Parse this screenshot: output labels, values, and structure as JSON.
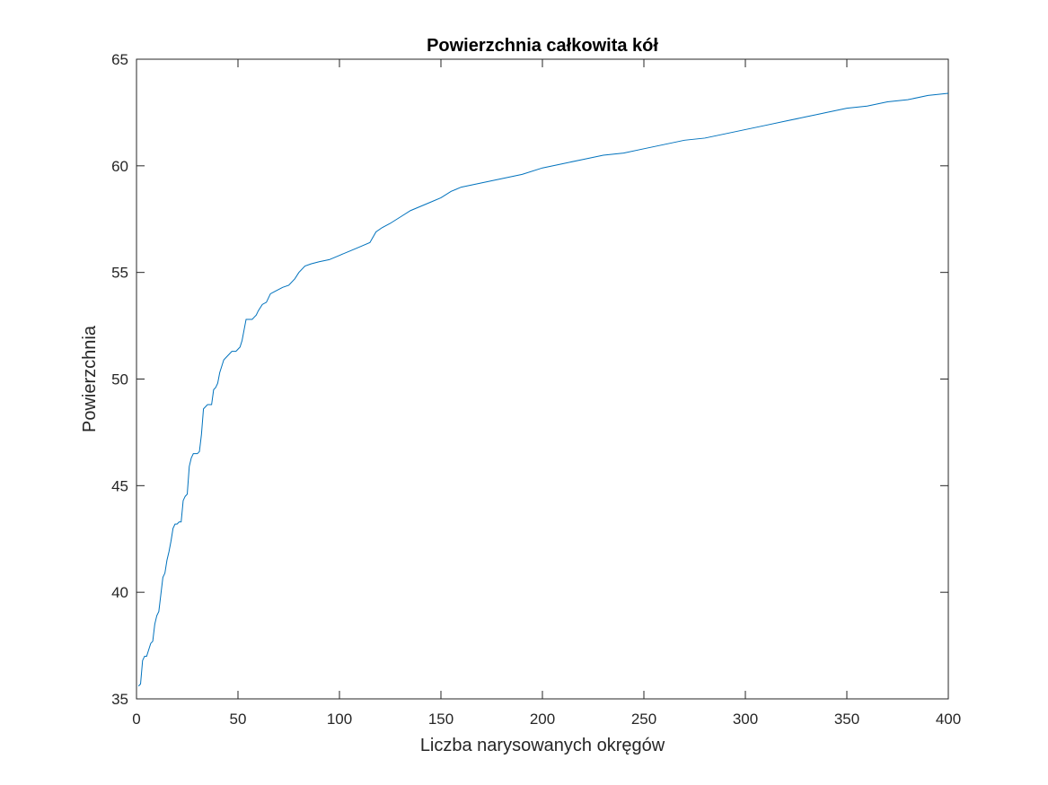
{
  "chart_data": {
    "type": "line",
    "title": "Powierzchnia całkowita kół",
    "xlabel": "Liczba narysowanych okręgów",
    "ylabel": "Powierzchnia",
    "xlim": [
      0,
      400
    ],
    "ylim": [
      35,
      65
    ],
    "xticks": [
      "0",
      "50",
      "100",
      "150",
      "200",
      "250",
      "300",
      "350",
      "400"
    ],
    "yticks": [
      "35",
      "40",
      "45",
      "50",
      "55",
      "60",
      "65"
    ],
    "grid": false,
    "series": [
      {
        "color": "#0072BD",
        "x": [
          1,
          2,
          3,
          4,
          5,
          6,
          7,
          8,
          9,
          10,
          11,
          12,
          13,
          14,
          15,
          16,
          17,
          18,
          19,
          20,
          21,
          22,
          23,
          24,
          25,
          26,
          27,
          28,
          29,
          30,
          31,
          32,
          33,
          34,
          35,
          36,
          37,
          38,
          39,
          40,
          41,
          42,
          43,
          44,
          45,
          46,
          47,
          48,
          49,
          50,
          51,
          52,
          53,
          54,
          55,
          56,
          57,
          58,
          59,
          60,
          62,
          64,
          66,
          68,
          70,
          72,
          75,
          78,
          80,
          83,
          86,
          90,
          95,
          100,
          105,
          110,
          115,
          118,
          121,
          125,
          130,
          135,
          140,
          145,
          150,
          155,
          160,
          170,
          180,
          190,
          200,
          210,
          220,
          230,
          240,
          250,
          260,
          270,
          280,
          290,
          300,
          310,
          320,
          330,
          340,
          350,
          360,
          370,
          380,
          390,
          400
        ],
        "values": [
          35.6,
          35.7,
          36.8,
          37.0,
          37.0,
          37.3,
          37.6,
          37.7,
          38.5,
          38.9,
          39.1,
          39.9,
          40.7,
          40.9,
          41.5,
          41.9,
          42.4,
          43.0,
          43.2,
          43.2,
          43.3,
          43.3,
          44.3,
          44.5,
          44.6,
          45.9,
          46.3,
          46.5,
          46.5,
          46.5,
          46.6,
          47.4,
          48.6,
          48.7,
          48.8,
          48.8,
          48.8,
          49.5,
          49.6,
          49.8,
          50.3,
          50.6,
          50.9,
          51.0,
          51.1,
          51.2,
          51.3,
          51.3,
          51.3,
          51.4,
          51.5,
          51.8,
          52.3,
          52.8,
          52.8,
          52.8,
          52.8,
          52.9,
          53.0,
          53.2,
          53.5,
          53.6,
          54.0,
          54.1,
          54.2,
          54.3,
          54.4,
          54.7,
          55.0,
          55.3,
          55.4,
          55.5,
          55.6,
          55.8,
          56.0,
          56.2,
          56.4,
          56.9,
          57.1,
          57.3,
          57.6,
          57.9,
          58.1,
          58.3,
          58.5,
          58.8,
          59.0,
          59.2,
          59.4,
          59.6,
          59.9,
          60.1,
          60.3,
          60.5,
          60.6,
          60.8,
          61.0,
          61.2,
          61.3,
          61.5,
          61.7,
          61.9,
          62.1,
          62.3,
          62.5,
          62.7,
          62.8,
          63.0,
          63.1,
          63.3,
          63.4
        ]
      }
    ]
  }
}
